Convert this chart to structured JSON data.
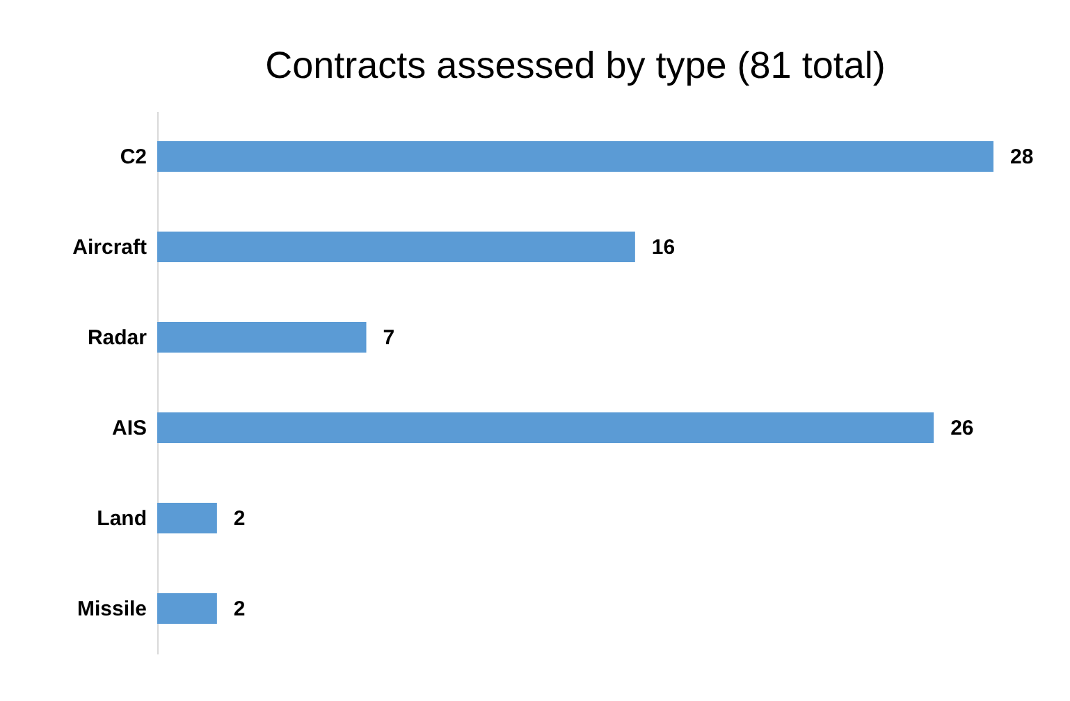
{
  "chart_data": {
    "type": "bar",
    "orientation": "horizontal",
    "title": "Contracts assessed by type (81 total)",
    "categories": [
      "C2",
      "Aircraft",
      "Radar",
      "AIS",
      "Land",
      "Missile"
    ],
    "values": [
      28,
      16,
      7,
      26,
      2,
      2
    ],
    "color": "#5b9bd5",
    "data_labels": true,
    "grid": false,
    "tick_labels": "y"
  }
}
